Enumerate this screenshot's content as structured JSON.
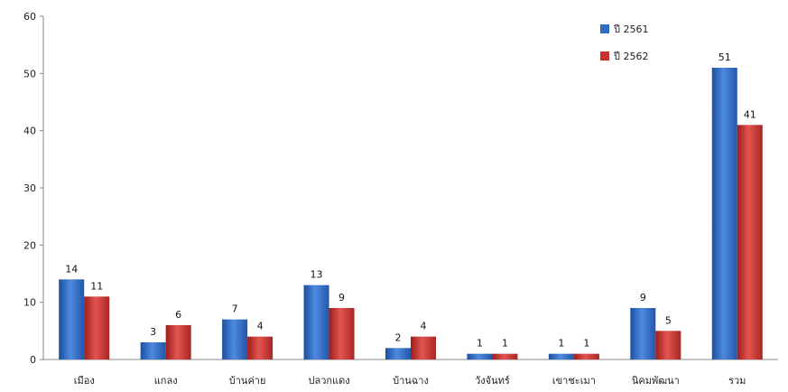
{
  "chart_data": {
    "type": "bar",
    "categories": [
      "เมือง",
      "แกลง",
      "บ้านค่าย",
      "ปลวกแดง",
      "บ้านฉาง",
      "วังจันทร์",
      "เขาชะเมา",
      "นิคมพัฒนา",
      "รวม"
    ],
    "series": [
      {
        "name": "ปี 2561",
        "values": [
          14,
          3,
          7,
          13,
          2,
          1,
          1,
          9,
          51
        ],
        "color": "#2f6bc4"
      },
      {
        "name": "ปี 2562",
        "values": [
          11,
          6,
          4,
          9,
          4,
          1,
          1,
          5,
          41
        ],
        "color": "#c8312f"
      }
    ],
    "ylim": [
      0,
      60
    ],
    "yticks": [
      "0",
      "10",
      "20",
      "30",
      "40",
      "50",
      "60"
    ],
    "grid": false,
    "legend": "top-right"
  }
}
